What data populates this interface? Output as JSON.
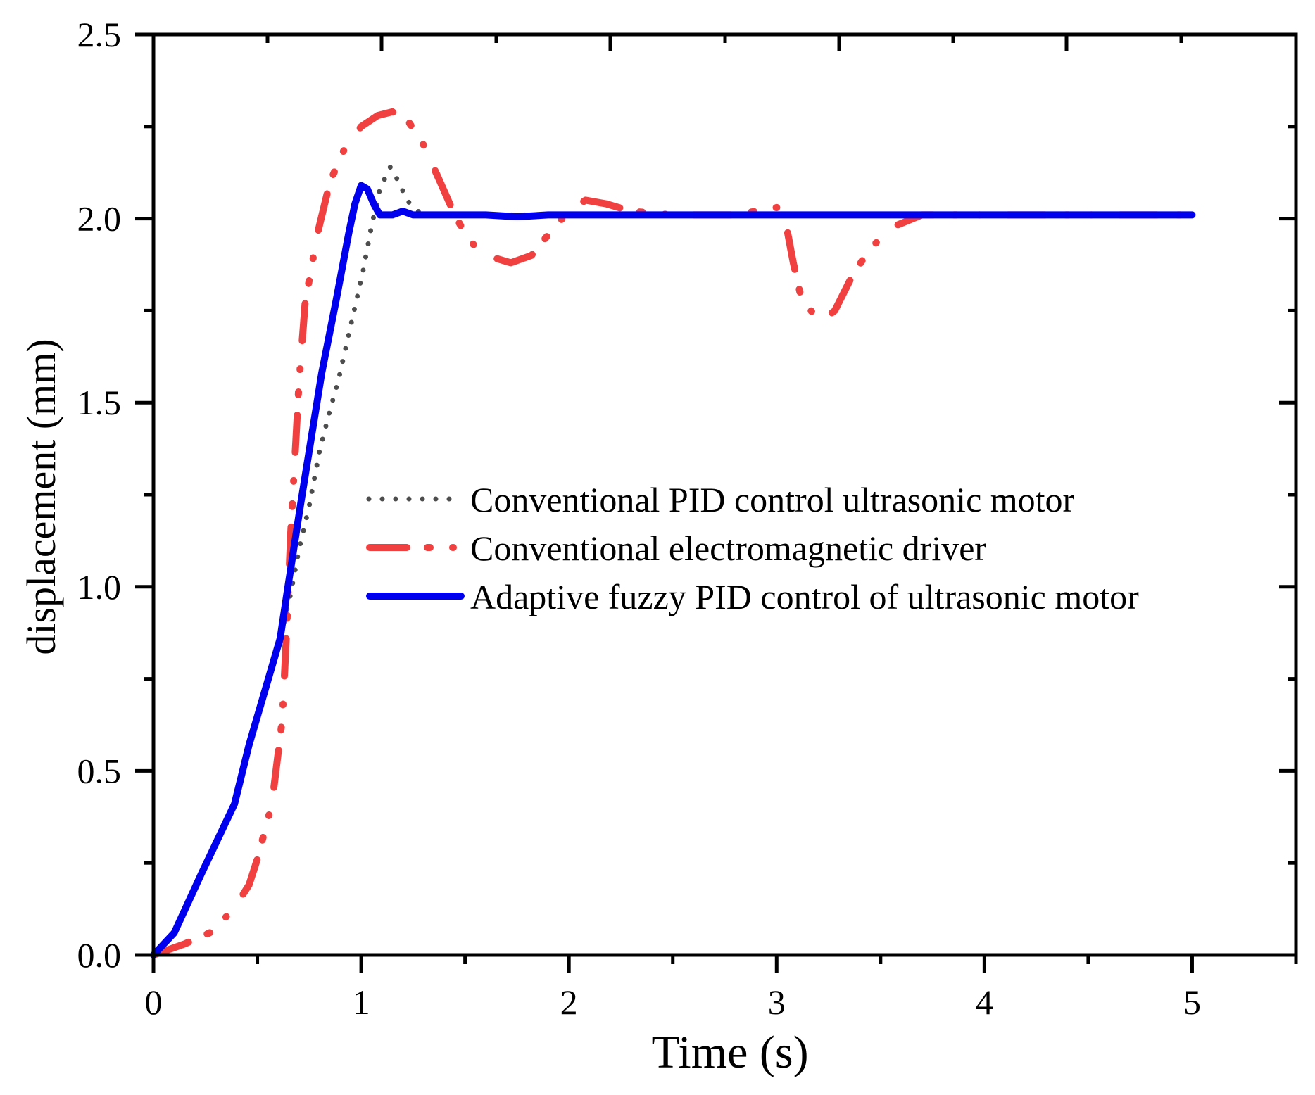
{
  "chart_data": {
    "type": "line",
    "title": "",
    "xlabel": "Time (s)",
    "ylabel": "displacement (mm)",
    "xlim": [
      0,
      5.5
    ],
    "ylim": [
      0,
      2.5
    ],
    "x_ticks": [
      0,
      1,
      2,
      3,
      4,
      5
    ],
    "x_tick_labels": [
      "0",
      "1",
      "2",
      "3",
      "4",
      "5"
    ],
    "y_ticks": [
      0.0,
      0.5,
      1.0,
      1.5,
      2.0,
      2.5
    ],
    "y_tick_labels": [
      "0.0",
      "0.5",
      "1.0",
      "1.5",
      "2.0",
      "2.5"
    ],
    "grid": false,
    "legend_position": "center",
    "series": [
      {
        "name": "Conventional PID control ultrasonic motor",
        "color": "#4d4d4d",
        "style": "dotted",
        "points": [
          [
            0,
            0
          ],
          [
            0.1,
            0.06
          ],
          [
            0.23,
            0.22
          ],
          [
            0.39,
            0.41
          ],
          [
            0.46,
            0.57
          ],
          [
            0.61,
            0.86
          ],
          [
            0.66,
            0.98
          ],
          [
            0.7,
            1.1
          ],
          [
            0.75,
            1.22
          ],
          [
            0.8,
            1.37
          ],
          [
            0.85,
            1.48
          ],
          [
            0.89,
            1.56
          ],
          [
            0.95,
            1.71
          ],
          [
            1.01,
            1.86
          ],
          [
            1.05,
            1.98
          ],
          [
            1.09,
            2.08
          ],
          [
            1.14,
            2.14
          ],
          [
            1.18,
            2.1
          ],
          [
            1.22,
            2.05
          ],
          [
            1.27,
            2.02
          ],
          [
            1.35,
            2.01
          ],
          [
            1.5,
            2.01
          ],
          [
            2.0,
            2.01
          ],
          [
            3.0,
            2.01
          ],
          [
            4.0,
            2.01
          ],
          [
            5.0,
            2.01
          ]
        ]
      },
      {
        "name": "Conventional electromagnetic driver",
        "color": "#f04040",
        "style": "dash-dot",
        "points": [
          [
            0,
            0
          ],
          [
            0.15,
            0.03
          ],
          [
            0.27,
            0.06
          ],
          [
            0.38,
            0.12
          ],
          [
            0.46,
            0.19
          ],
          [
            0.5,
            0.26
          ],
          [
            0.57,
            0.41
          ],
          [
            0.62,
            0.64
          ],
          [
            0.64,
            0.87
          ],
          [
            0.66,
            1.14
          ],
          [
            0.685,
            1.39
          ],
          [
            0.7,
            1.55
          ],
          [
            0.73,
            1.77
          ],
          [
            0.79,
            1.96
          ],
          [
            0.85,
            2.1
          ],
          [
            0.92,
            2.19
          ],
          [
            1.0,
            2.25
          ],
          [
            1.08,
            2.28
          ],
          [
            1.15,
            2.29
          ],
          [
            1.22,
            2.27
          ],
          [
            1.3,
            2.2
          ],
          [
            1.38,
            2.1
          ],
          [
            1.45,
            2.01
          ],
          [
            1.52,
            1.94
          ],
          [
            1.6,
            1.9
          ],
          [
            1.72,
            1.88
          ],
          [
            1.82,
            1.9
          ],
          [
            1.92,
            1.97
          ],
          [
            2.0,
            2.02
          ],
          [
            2.08,
            2.05
          ],
          [
            2.18,
            2.04
          ],
          [
            2.3,
            2.02
          ],
          [
            2.5,
            2.01
          ],
          [
            2.8,
            2.01
          ],
          [
            3.0,
            2.03
          ],
          [
            3.04,
            2.0
          ],
          [
            3.08,
            1.88
          ],
          [
            3.12,
            1.78
          ],
          [
            3.21,
            1.72
          ],
          [
            3.28,
            1.75
          ],
          [
            3.36,
            1.84
          ],
          [
            3.45,
            1.92
          ],
          [
            3.57,
            1.98
          ],
          [
            3.7,
            2.01
          ],
          [
            4.0,
            2.01
          ],
          [
            5.0,
            2.01
          ]
        ]
      },
      {
        "name": "Adaptive fuzzy PID control of ultrasonic motor",
        "color": "#0000ee",
        "style": "solid",
        "points": [
          [
            0,
            0
          ],
          [
            0.1,
            0.06
          ],
          [
            0.23,
            0.22
          ],
          [
            0.39,
            0.41
          ],
          [
            0.46,
            0.57
          ],
          [
            0.61,
            0.86
          ],
          [
            0.65,
            1.01
          ],
          [
            0.71,
            1.23
          ],
          [
            0.81,
            1.58
          ],
          [
            0.88,
            1.78
          ],
          [
            0.94,
            1.96
          ],
          [
            0.97,
            2.04
          ],
          [
            1.0,
            2.09
          ],
          [
            1.03,
            2.08
          ],
          [
            1.06,
            2.04
          ],
          [
            1.09,
            2.01
          ],
          [
            1.15,
            2.01
          ],
          [
            1.2,
            2.02
          ],
          [
            1.25,
            2.01
          ],
          [
            1.4,
            2.01
          ],
          [
            1.6,
            2.01
          ],
          [
            1.75,
            2.005
          ],
          [
            1.9,
            2.01
          ],
          [
            2.5,
            2.01
          ],
          [
            3.0,
            2.01
          ],
          [
            4.0,
            2.01
          ],
          [
            5.0,
            2.01
          ]
        ]
      }
    ]
  }
}
